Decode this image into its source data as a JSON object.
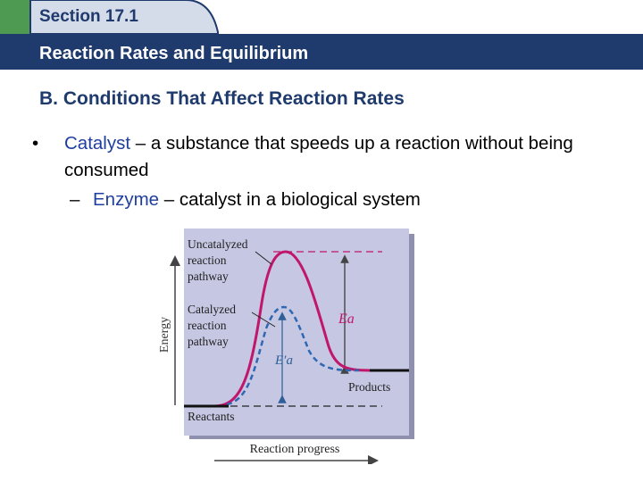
{
  "header": {
    "section_label": "Section 17.1",
    "title": "Reaction Rates and Equilibrium",
    "colors": {
      "bar": "#1f3a6d",
      "tab": "#d4dbe9",
      "square": "#4f9a53"
    }
  },
  "slide": {
    "heading": "B. Conditions That Affect Reaction Rates",
    "bullet": {
      "symbol": "•",
      "term": "Catalyst",
      "text": " – a substance that speeds up a reaction without being consumed"
    },
    "subbullet": {
      "symbol": "–",
      "term": "Enzyme",
      "text": " – catalyst in a biological system"
    },
    "term_color": "#1f3f9e"
  },
  "figure": {
    "y_axis_label": "Energy",
    "x_axis_label": "Reaction progress",
    "label_uncatalyzed": [
      "Uncatalyzed",
      "reaction",
      "pathway"
    ],
    "label_catalyzed": [
      "Catalyzed",
      "reaction",
      "pathway"
    ],
    "label_ea": "Ea",
    "label_ea_prime": "E′a",
    "label_products": "Products",
    "label_reactants": "Reactants",
    "colors": {
      "panel": "#c5c7e3",
      "panel_shadow": "#8e90ad",
      "curve": "#c0166b",
      "catalyzed": "#2f67b3"
    }
  }
}
